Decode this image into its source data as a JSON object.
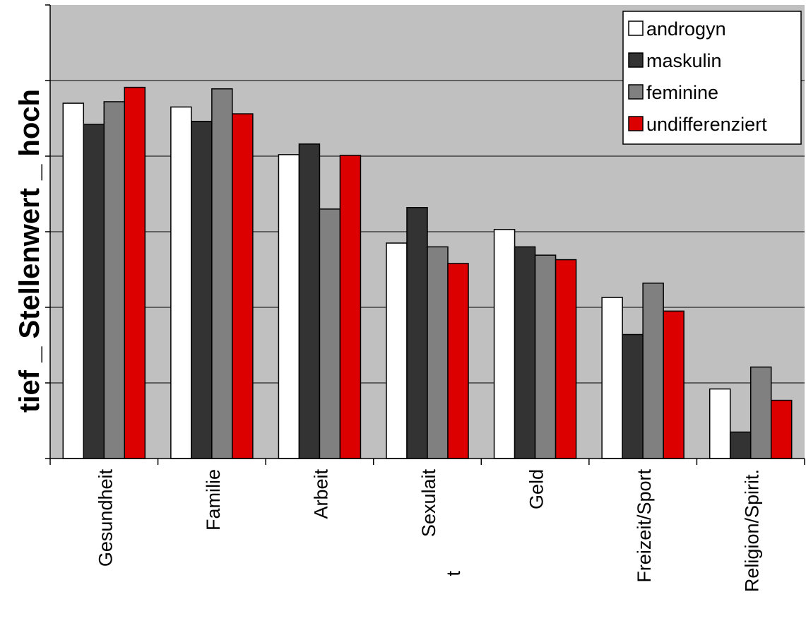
{
  "chart_data": {
    "type": "bar",
    "title": "",
    "xlabel": "",
    "ylabel": "tief _ Stellenwert _ hoch",
    "ylim": [
      0,
      6
    ],
    "grid": true,
    "legend_position": "top-right",
    "categories": [
      "Gesundheit",
      "Familie",
      "Arbeit",
      "Sexulait",
      "Geld",
      "Freizeit/Sport",
      "Religion/Spirit."
    ],
    "category_extra": {
      "3": "t"
    },
    "series": [
      {
        "name": "androgyn",
        "color": "#ffffff",
        "values": [
          4.7,
          4.65,
          4.02,
          2.85,
          3.03,
          2.13,
          0.92
        ]
      },
      {
        "name": "maskulin",
        "color": "#333333",
        "values": [
          4.42,
          4.46,
          4.16,
          3.32,
          2.8,
          1.64,
          0.35
        ]
      },
      {
        "name": "feminine",
        "color": "#808080",
        "values": [
          4.72,
          4.89,
          3.3,
          2.8,
          2.69,
          2.32,
          1.21
        ]
      },
      {
        "name": "undifferenziert",
        "color": "#dd0000",
        "values": [
          4.91,
          4.56,
          4.01,
          2.58,
          2.63,
          1.95,
          0.77
        ]
      }
    ],
    "plot_background": "#c0c0c0"
  }
}
